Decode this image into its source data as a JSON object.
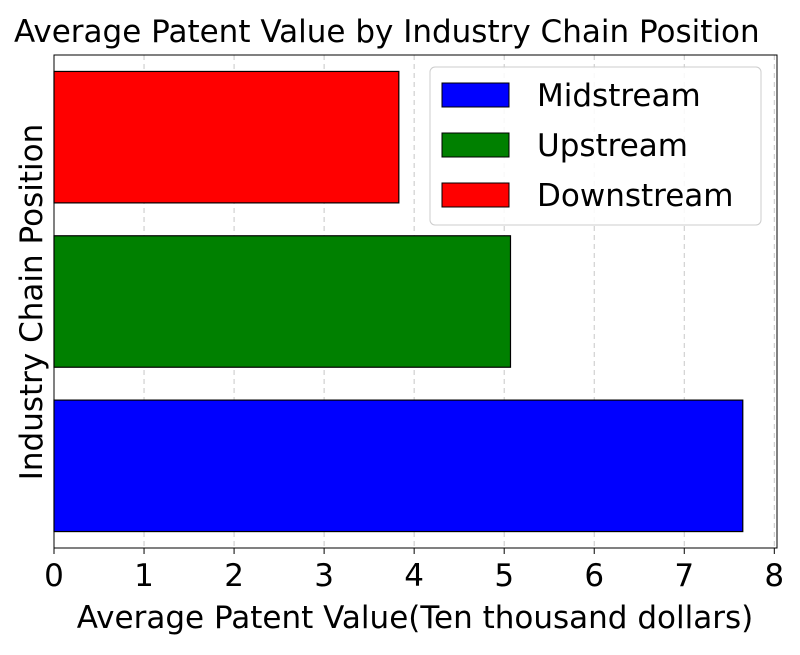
{
  "chart_data": {
    "type": "bar",
    "orientation": "horizontal",
    "title": "Average Patent Value by Industry Chain Position",
    "xlabel": "Average Patent Value(Ten thousand dollars)",
    "ylabel": "Industry Chain Position",
    "xlim": [
      0,
      8.03
    ],
    "xticks": [
      "0",
      "1",
      "2",
      "3",
      "4",
      "5",
      "6",
      "7",
      "8"
    ],
    "grid": true,
    "legend_position": "top-right",
    "series": [
      {
        "name": "Midstream",
        "value": 7.65,
        "color": "#0000ff"
      },
      {
        "name": "Upstream",
        "value": 5.07,
        "color": "#008000"
      },
      {
        "name": "Downstream",
        "value": 3.83,
        "color": "#ff0000"
      }
    ]
  }
}
